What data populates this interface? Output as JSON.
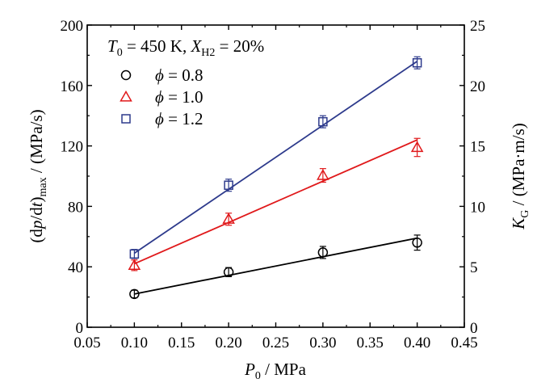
{
  "chart_data": {
    "type": "scatter",
    "title": "",
    "annotation": {
      "t_symbol": "T",
      "t_sub": "0",
      "t_text": " = 450 K,  ",
      "x_symbol": "X",
      "x_sub": "H2",
      "x_text": " = 20%"
    },
    "xlabel": {
      "symbol": "P",
      "sub": "0",
      "unit": " / MPa"
    },
    "ylabel_left": {
      "prefix": "(d",
      "p": "p",
      "slash": "/d",
      "t": "t",
      "close": ")",
      "sub": "max",
      "unit": " / (MPa/s)"
    },
    "ylabel_right": {
      "symbol": "K",
      "sub": "G",
      "unit": " / (MPa·m/s)"
    },
    "xlim": [
      0.05,
      0.45
    ],
    "ylim_left": [
      0,
      200
    ],
    "ylim_right": [
      0,
      25
    ],
    "x_ticks": [
      "0.05",
      "0.10",
      "0.15",
      "0.20",
      "0.25",
      "0.30",
      "0.35",
      "0.40",
      "0.45"
    ],
    "y_left_ticks": [
      "0",
      "40",
      "80",
      "120",
      "160",
      "200"
    ],
    "y_right_ticks": [
      "0",
      "5",
      "10",
      "15",
      "20",
      "25"
    ],
    "grid": false,
    "legend_position": "top-left",
    "x": [
      0.1,
      0.2,
      0.3,
      0.4
    ],
    "series": [
      {
        "name": "0.8",
        "label_symbol": "ϕ",
        "label_rest": " = 0.8",
        "color": "#000000",
        "marker": "circle",
        "values": [
          22,
          36.5,
          49.5,
          56
        ],
        "errors": [
          2.5,
          3,
          4,
          5
        ],
        "fit_line": [
          22,
          34.3,
          46.6,
          59
        ]
      },
      {
        "name": "1.0",
        "label_symbol": "ϕ",
        "label_rest": " = 1.0",
        "color": "#e0191b",
        "marker": "triangle",
        "values": [
          41,
          71.5,
          100.5,
          119
        ],
        "errors": [
          3.5,
          4,
          4.5,
          6
        ],
        "fit_line": [
          42,
          69.3,
          96.7,
          124
        ]
      },
      {
        "name": "1.2",
        "label_symbol": "ϕ",
        "label_rest": " = 1.2",
        "color": "#2d3a8c",
        "marker": "square",
        "values": [
          48.5,
          94,
          136,
          175
        ],
        "errors": [
          3,
          4,
          4,
          4
        ],
        "fit_line": [
          49,
          91.3,
          133.7,
          176
        ]
      }
    ]
  }
}
